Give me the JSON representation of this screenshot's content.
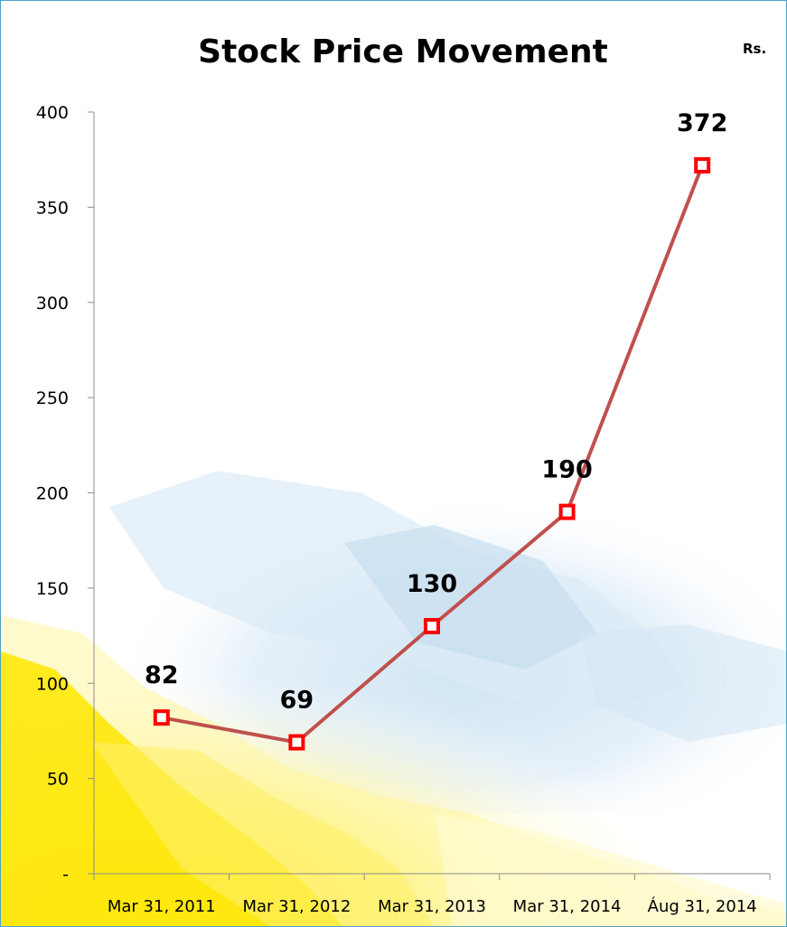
{
  "chart_data": {
    "type": "line",
    "title": "Stock Price Movement",
    "unit_label": "Rs.",
    "xlabel": "",
    "ylabel": "",
    "categories": [
      "Mar 31, 2011",
      "Mar 31, 2012",
      "Mar 31, 2013",
      "Mar 31, 2014",
      "Áug 31, 2014"
    ],
    "series": [
      {
        "values": [
          82,
          69,
          130,
          190,
          372
        ]
      }
    ],
    "data_labels": [
      "82",
      "69",
      "130",
      "190",
      "372"
    ],
    "ylim": [
      0,
      400
    ],
    "y_ticks": [
      {
        "value": 0,
        "label": "-"
      },
      {
        "value": 50,
        "label": "50"
      },
      {
        "value": 100,
        "label": "100"
      },
      {
        "value": 150,
        "label": "150"
      },
      {
        "value": 200,
        "label": "200"
      },
      {
        "value": 250,
        "label": "250"
      },
      {
        "value": 300,
        "label": "300"
      },
      {
        "value": 350,
        "label": "350"
      },
      {
        "value": 400,
        "label": "400"
      }
    ],
    "grid": false,
    "legend": "none",
    "line_color": "#c0504d",
    "marker_color": "#ff0000"
  }
}
